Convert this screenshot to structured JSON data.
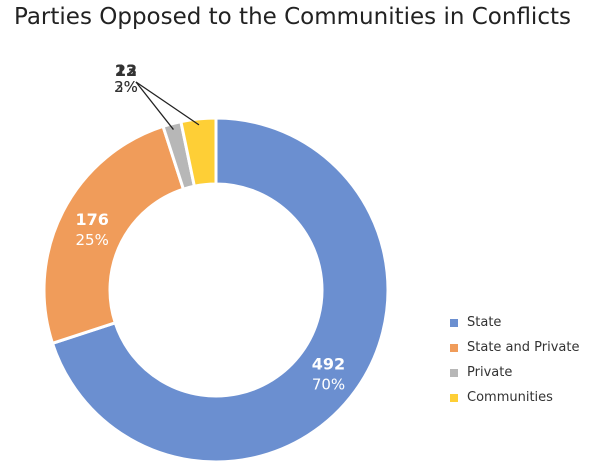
{
  "chart_data": {
    "type": "pie",
    "title": "Parties Opposed to the Communities in Conflicts",
    "legend_position": "right",
    "series": [
      {
        "name": "State",
        "value": 492,
        "percent_label": "70%",
        "color": "#6B8FD0"
      },
      {
        "name": "State and Private",
        "value": 176,
        "percent_label": "25%",
        "color": "#F09C5A"
      },
      {
        "name": "Private",
        "value": 12,
        "percent_label": "2%",
        "color": "#B7B7B7"
      },
      {
        "name": "Communities",
        "value": 23,
        "percent_label": "3%",
        "color": "#FECF36"
      }
    ]
  }
}
